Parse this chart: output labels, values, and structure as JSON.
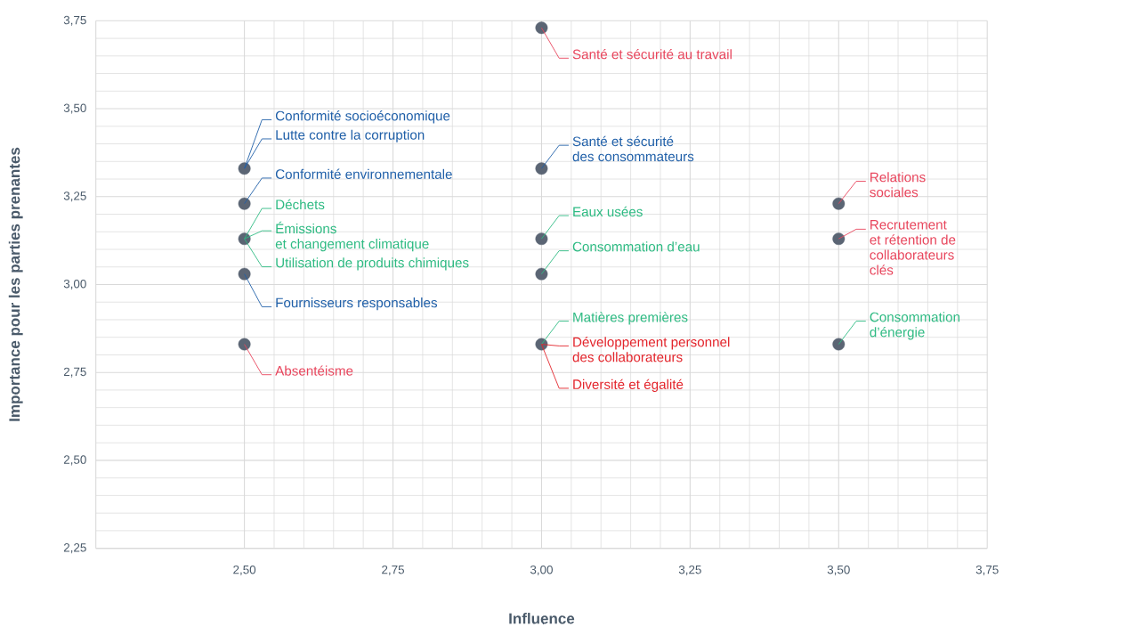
{
  "chart_data": {
    "type": "scatter",
    "xlabel": "Influence",
    "ylabel": "Importance pour les parties prenantes",
    "x": [
      2.5,
      2.5,
      2.5,
      2.5,
      2.5,
      3.0,
      3.0,
      3.0,
      3.0,
      3.0,
      3.5,
      3.5,
      3.5
    ],
    "series": [
      {
        "color": "#5b6574",
        "values": [
          3.33,
          3.23,
          3.13,
          3.03,
          2.83,
          3.73,
          3.33,
          3.13,
          3.03,
          2.83,
          3.23,
          3.13,
          2.83
        ]
      }
    ],
    "marker": "circle",
    "xlim": [
      2.25,
      3.75
    ],
    "ylim": [
      2.25,
      3.75
    ],
    "xticks": [
      {
        "value": 2.5,
        "label": "2,50"
      },
      {
        "value": 2.75,
        "label": "2,75"
      },
      {
        "value": 3.0,
        "label": "3,00"
      },
      {
        "value": 3.25,
        "label": "3,25"
      },
      {
        "value": 3.5,
        "label": "3,50"
      },
      {
        "value": 3.75,
        "label": "3,75"
      }
    ],
    "yticks": [
      {
        "value": 2.25,
        "label": "2,25"
      },
      {
        "value": 2.5,
        "label": "2,50"
      },
      {
        "value": 2.75,
        "label": "2,75"
      },
      {
        "value": 3.0,
        "label": "3,00"
      },
      {
        "value": 3.25,
        "label": "3,25"
      },
      {
        "value": 3.5,
        "label": "3,50"
      },
      {
        "value": 3.75,
        "label": "3,75"
      }
    ],
    "grid": true,
    "annotations": [
      {
        "text": "Conformité socioéconomique",
        "x": 2.5,
        "y": 3.33
      },
      {
        "text": "Lutte contre la corruption",
        "x": 2.5,
        "y": 3.33
      },
      {
        "text": "Conformité environnementale",
        "x": 2.5,
        "y": 3.23
      },
      {
        "text": "Déchets",
        "x": 2.5,
        "y": 3.13
      },
      {
        "text": "Émissions\net changement climatique",
        "x": 2.5,
        "y": 3.13
      },
      {
        "text": "Utilisation de produits chimiques",
        "x": 2.5,
        "y": 3.13
      },
      {
        "text": "Fournisseurs responsables",
        "x": 2.5,
        "y": 3.03
      },
      {
        "text": "Absentéisme",
        "x": 2.5,
        "y": 2.83
      },
      {
        "text": "Santé et sécurité au travail",
        "x": 3.0,
        "y": 3.73
      },
      {
        "text": "Santé et sécurité\ndes consommateurs",
        "x": 3.0,
        "y": 3.33
      },
      {
        "text": "Eaux usées",
        "x": 3.0,
        "y": 3.13
      },
      {
        "text": "Consommation d’eau",
        "x": 3.0,
        "y": 3.03
      },
      {
        "text": "Matières premières",
        "x": 3.0,
        "y": 2.83
      },
      {
        "text": "Développement personnel\ndes collaborateurs",
        "x": 3.0,
        "y": 2.83
      },
      {
        "text": "Diversité et égalité",
        "x": 3.0,
        "y": 2.83
      },
      {
        "text": "Relations\nsociales",
        "x": 3.5,
        "y": 3.23
      },
      {
        "text": "Recrutement\net rétention de\ncollaborateurs\nclés",
        "x": 3.5,
        "y": 3.13
      },
      {
        "text": "Consommation\nd’énergie",
        "x": 3.5,
        "y": 2.83
      }
    ]
  }
}
